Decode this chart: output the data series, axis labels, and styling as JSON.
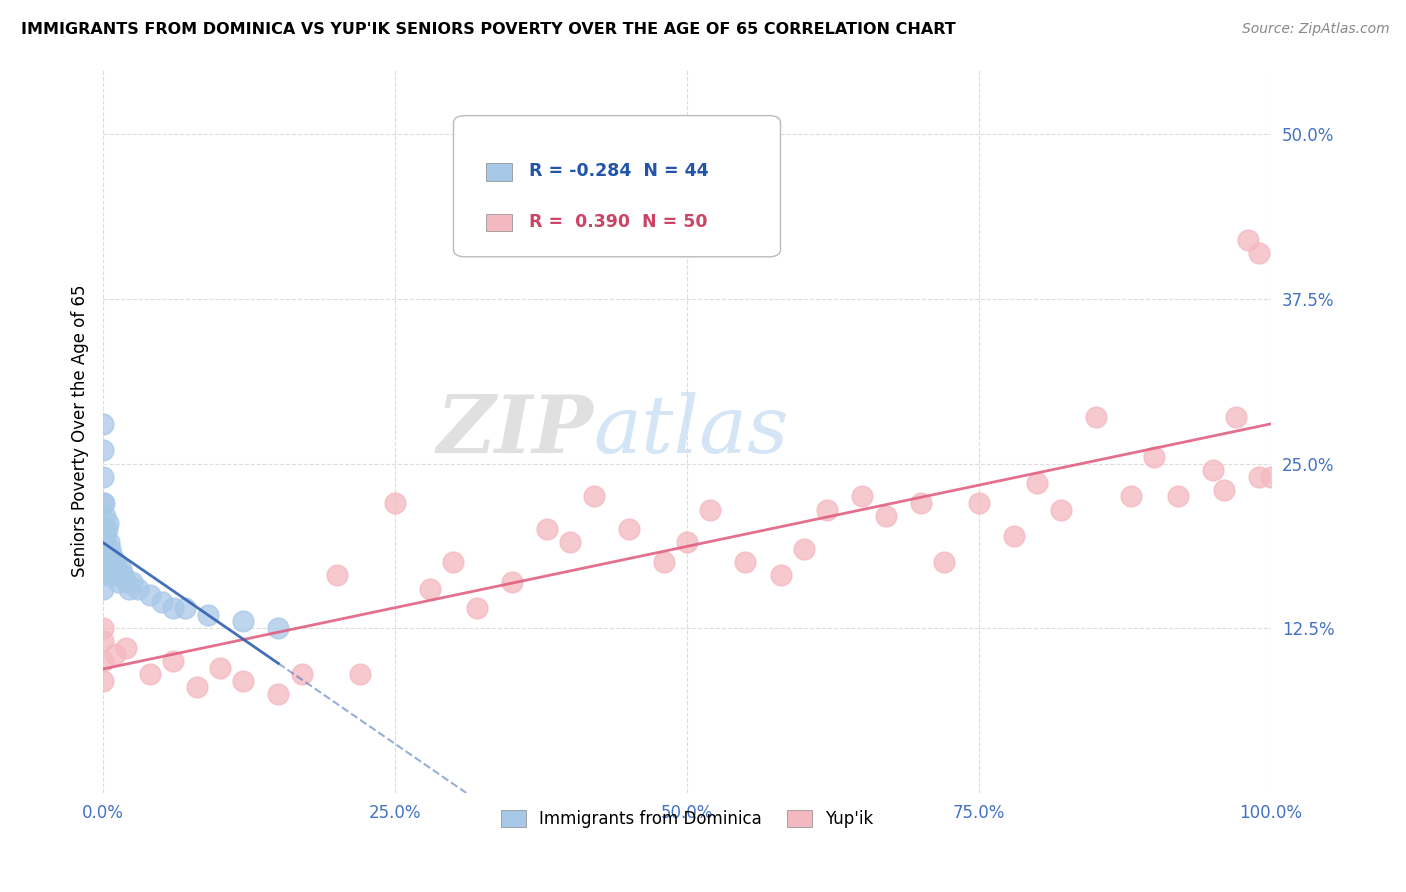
{
  "title": "IMMIGRANTS FROM DOMINICA VS YUP'IK SENIORS POVERTY OVER THE AGE OF 65 CORRELATION CHART",
  "source": "Source: ZipAtlas.com",
  "ylabel": "Seniors Poverty Over the Age of 65",
  "legend_label1": "Immigrants from Dominica",
  "legend_label2": "Yup'ik",
  "R1": -0.284,
  "N1": 44,
  "R2": 0.39,
  "N2": 50,
  "color1": "#a8c8e8",
  "color2": "#f4b8c0",
  "line_color1": "#3060b0",
  "line_color2": "#e06080",
  "background_color": "#ffffff",
  "grid_color": "#dddddd",
  "watermark_zip": "ZIP",
  "watermark_atlas": "atlas",
  "xmin": 0.0,
  "xmax": 1.0,
  "ymin": 0.0,
  "ymax": 0.55,
  "xticks": [
    0.0,
    0.25,
    0.5,
    0.75,
    1.0
  ],
  "xtick_labels": [
    "0.0%",
    "25.0%",
    "50.0%",
    "75.0%",
    "100.0%"
  ],
  "yticks": [
    0.125,
    0.25,
    0.375,
    0.5
  ],
  "ytick_labels": [
    "12.5%",
    "25.0%",
    "37.5%",
    "50.0%"
  ],
  "blue_x": [
    0.0,
    0.0,
    0.0,
    0.0,
    0.0,
    0.0,
    0.0,
    0.0,
    0.0,
    0.0,
    0.001,
    0.001,
    0.001,
    0.001,
    0.002,
    0.002,
    0.002,
    0.003,
    0.003,
    0.004,
    0.004,
    0.005,
    0.005,
    0.006,
    0.007,
    0.008,
    0.008,
    0.01,
    0.01,
    0.012,
    0.013,
    0.015,
    0.017,
    0.02,
    0.022,
    0.025,
    0.03,
    0.04,
    0.05,
    0.06,
    0.07,
    0.09,
    0.12,
    0.15
  ],
  "blue_y": [
    0.28,
    0.26,
    0.24,
    0.22,
    0.2,
    0.19,
    0.18,
    0.175,
    0.165,
    0.155,
    0.22,
    0.2,
    0.185,
    0.17,
    0.21,
    0.195,
    0.175,
    0.2,
    0.185,
    0.205,
    0.175,
    0.19,
    0.175,
    0.185,
    0.175,
    0.18,
    0.165,
    0.175,
    0.165,
    0.17,
    0.16,
    0.17,
    0.165,
    0.16,
    0.155,
    0.16,
    0.155,
    0.15,
    0.145,
    0.14,
    0.14,
    0.135,
    0.13,
    0.125
  ],
  "pink_x": [
    0.0,
    0.0,
    0.0,
    0.0,
    0.01,
    0.02,
    0.04,
    0.06,
    0.08,
    0.1,
    0.12,
    0.15,
    0.17,
    0.2,
    0.22,
    0.25,
    0.28,
    0.3,
    0.32,
    0.35,
    0.38,
    0.4,
    0.42,
    0.45,
    0.48,
    0.5,
    0.52,
    0.55,
    0.58,
    0.6,
    0.62,
    0.65,
    0.67,
    0.7,
    0.72,
    0.75,
    0.78,
    0.8,
    0.82,
    0.85,
    0.88,
    0.9,
    0.92,
    0.95,
    0.96,
    0.97,
    0.98,
    0.99,
    0.99,
    1.0
  ],
  "pink_y": [
    0.125,
    0.115,
    0.1,
    0.085,
    0.105,
    0.11,
    0.09,
    0.1,
    0.08,
    0.095,
    0.085,
    0.075,
    0.09,
    0.165,
    0.09,
    0.22,
    0.155,
    0.175,
    0.14,
    0.16,
    0.2,
    0.19,
    0.225,
    0.2,
    0.175,
    0.19,
    0.215,
    0.175,
    0.165,
    0.185,
    0.215,
    0.225,
    0.21,
    0.22,
    0.175,
    0.22,
    0.195,
    0.235,
    0.215,
    0.285,
    0.225,
    0.255,
    0.225,
    0.245,
    0.23,
    0.285,
    0.42,
    0.24,
    0.41,
    0.24
  ]
}
